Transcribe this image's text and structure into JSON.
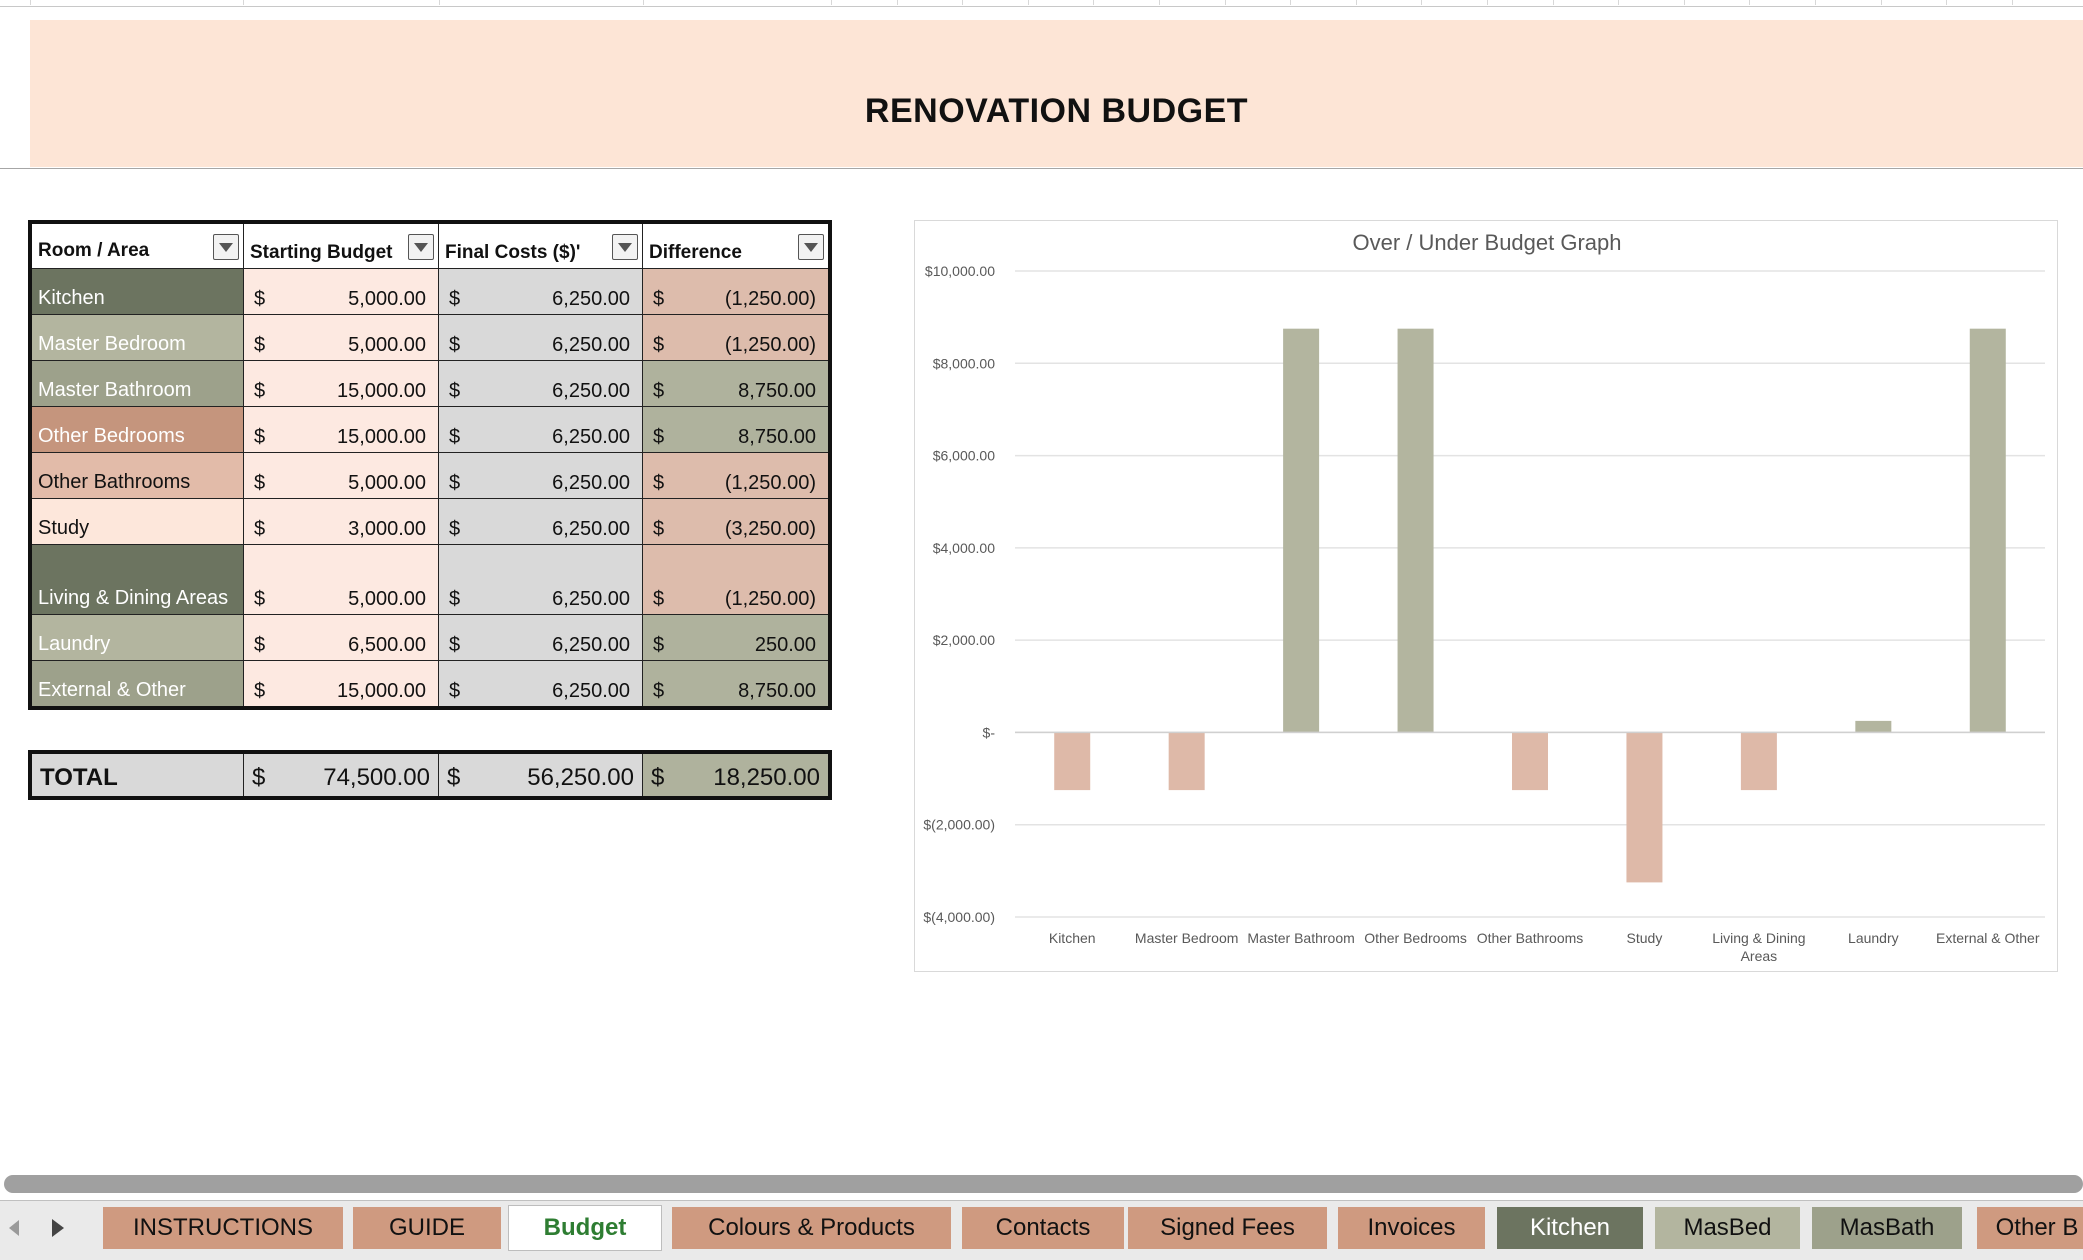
{
  "title": "RENOVATION BUDGET",
  "table": {
    "headers": [
      "Room / Area",
      "Starting Budget",
      "Final Costs ($)'",
      "Difference"
    ],
    "currency": "$",
    "rows": [
      {
        "room": "Kitchen",
        "start": "5,000.00",
        "final": "6,250.00",
        "diff": "(1,250.00)",
        "room_bg": "#6c7460",
        "room_fg": "#ffffff",
        "diff_bg": "#ddbcac"
      },
      {
        "room": "Master Bedroom",
        "start": "5,000.00",
        "final": "6,250.00",
        "diff": "(1,250.00)",
        "room_bg": "#b3b59f",
        "room_fg": "#ffffff",
        "diff_bg": "#ddbcac"
      },
      {
        "room": "Master Bathroom",
        "start": "15,000.00",
        "final": "6,250.00",
        "diff": "8,750.00",
        "room_bg": "#9da18b",
        "room_fg": "#ffffff",
        "diff_bg": "#afb29d"
      },
      {
        "room": "Other Bedrooms",
        "start": "15,000.00",
        "final": "6,250.00",
        "diff": "8,750.00",
        "room_bg": "#c5957d",
        "room_fg": "#ffffff",
        "diff_bg": "#afb29d"
      },
      {
        "room": "Other Bathrooms",
        "start": "5,000.00",
        "final": "6,250.00",
        "diff": "(1,250.00)",
        "room_bg": "#e2bba9",
        "room_fg": "#111111",
        "diff_bg": "#ddbcac"
      },
      {
        "room": "Study",
        "start": "3,000.00",
        "final": "6,250.00",
        "diff": "(3,250.00)",
        "room_bg": "#fde7db",
        "room_fg": "#111111",
        "diff_bg": "#ddbcac"
      },
      {
        "room": "Living & Dining Areas",
        "start": "5,000.00",
        "final": "6,250.00",
        "diff": "(1,250.00)",
        "room_bg": "#6c7460",
        "room_fg": "#ffffff",
        "diff_bg": "#ddbcac"
      },
      {
        "room": "Laundry",
        "start": "6,500.00",
        "final": "6,250.00",
        "diff": "250.00",
        "room_bg": "#b3b59f",
        "room_fg": "#ffffff",
        "diff_bg": "#afb29d"
      },
      {
        "room": "External & Other",
        "start": "15,000.00",
        "final": "6,250.00",
        "diff": "8,750.00",
        "room_bg": "#9da18b",
        "room_fg": "#ffffff",
        "diff_bg": "#afb29d"
      }
    ],
    "total": {
      "label": "TOTAL",
      "start": "74,500.00",
      "final": "56,250.00",
      "diff": "18,250.00"
    }
  },
  "chart_data": {
    "type": "bar",
    "title": "Over / Under Budget Graph",
    "categories": [
      "Kitchen",
      "Master Bedroom",
      "Master Bathroom",
      "Other Bedrooms",
      "Other Bathrooms",
      "Study",
      "Living & Dining Areas",
      "Laundry",
      "External & Other"
    ],
    "values": [
      -1250,
      -1250,
      8750,
      8750,
      -1250,
      -3250,
      -1250,
      250,
      8750
    ],
    "ylim": [
      -4000,
      10000
    ],
    "yticks": [
      10000,
      8000,
      6000,
      4000,
      2000,
      0,
      -2000,
      -4000
    ],
    "ytick_labels": [
      "$10,000.00",
      "$8,000.00",
      "$6,000.00",
      "$4,000.00",
      "$2,000.00",
      "$-",
      "$(2,000.00)",
      "$(4,000.00)"
    ],
    "positive_color": "#b3b59f",
    "negative_color": "#deb9a8",
    "grid": true
  },
  "tabs": [
    {
      "label": "INSTRUCTIONS",
      "bg": "#cf9a80",
      "active": false
    },
    {
      "label": "GUIDE",
      "bg": "#cf9a80",
      "active": false
    },
    {
      "label": "Budget",
      "bg": "#ffffff",
      "active": true
    },
    {
      "label": "Colours & Products",
      "bg": "#cf9a80",
      "active": false
    },
    {
      "label": "Contacts",
      "bg": "#cf9a80",
      "active": false
    },
    {
      "label": "Signed Fees",
      "bg": "#cf9a80",
      "active": false
    },
    {
      "label": "Invoices",
      "bg": "#cf9a80",
      "active": false
    },
    {
      "label": "Kitchen",
      "bg": "#6c7460",
      "fg": "#ffffff",
      "active": false
    },
    {
      "label": "MasBed",
      "bg": "#b3b59f",
      "active": false
    },
    {
      "label": "MasBath",
      "bg": "#9da18b",
      "active": false
    },
    {
      "label": "Other B",
      "bg": "#cf9a80",
      "active": false
    }
  ]
}
